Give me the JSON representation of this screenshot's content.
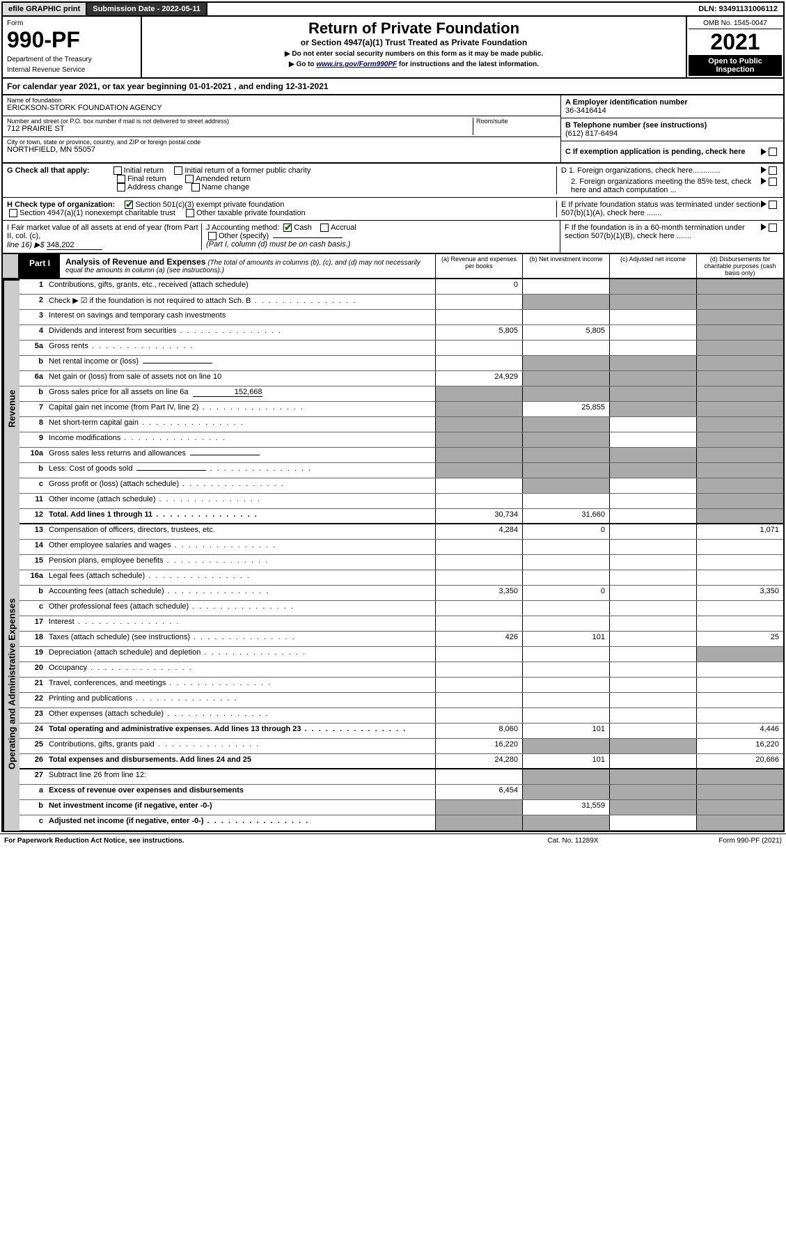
{
  "top_bar": {
    "efile": "efile GRAPHIC print",
    "submission_label": "Submission Date - 2022-05-11",
    "dln": "DLN: 93491131006112"
  },
  "form_header": {
    "form_label": "Form",
    "form_number": "990-PF",
    "dept_line1": "Department of the Treasury",
    "dept_line2": "Internal Revenue Service",
    "title": "Return of Private Foundation",
    "subtitle": "or Section 4947(a)(1) Trust Treated as Private Foundation",
    "note1": "▶ Do not enter social security numbers on this form as it may be made public.",
    "note2_pre": "▶ Go to ",
    "note2_link": "www.irs.gov/Form990PF",
    "note2_post": " for instructions and the latest information.",
    "omb": "OMB No. 1545-0047",
    "year": "2021",
    "inspection": "Open to Public Inspection"
  },
  "cal_year": {
    "text_pre": "For calendar year 2021, or tax year beginning ",
    "begin": "01-01-2021",
    "text_mid": " , and ending ",
    "end": "12-31-2021"
  },
  "entity": {
    "name_label": "Name of foundation",
    "name": "ERICKSON-STORK FOUNDATION AGENCY",
    "addr_label": "Number and street (or P.O. box number if mail is not delivered to street address)",
    "addr": "712 PRAIRIE ST",
    "room_label": "Room/suite",
    "city_label": "City or town, state or province, country, and ZIP or foreign postal code",
    "city": "NORTHFIELD, MN  55057",
    "ein_label": "A Employer identification number",
    "ein": "36-3416414",
    "phone_label": "B Telephone number (see instructions)",
    "phone": "(612) 817-6494",
    "c_label": "C If exemption application is pending, check here",
    "d1_label": "D 1. Foreign organizations, check here.............",
    "d2_label": "2. Foreign organizations meeting the 85% test, check here and attach computation ...",
    "e_label": "E If private foundation status was terminated under section 507(b)(1)(A), check here .......",
    "f_label": "F If the foundation is in a 60-month termination under section 507(b)(1)(B), check here ......."
  },
  "check_g": {
    "label": "G Check all that apply:",
    "items": [
      "Initial return",
      "Initial return of a former public charity",
      "Final return",
      "Amended return",
      "Address change",
      "Name change"
    ]
  },
  "check_h": {
    "label": "H Check type of organization:",
    "opt1": "Section 501(c)(3) exempt private foundation",
    "opt2": "Section 4947(a)(1) nonexempt charitable trust",
    "opt3": "Other taxable private foundation"
  },
  "check_i": {
    "label_pre": "I Fair market value of all assets at end of year (from Part II, col. (c),",
    "label_line": "line 16) ▶$",
    "value": "348,202"
  },
  "check_j": {
    "label": "J Accounting method:",
    "cash": "Cash",
    "accrual": "Accrual",
    "other": "Other (specify)",
    "note": "(Part I, column (d) must be on cash basis.)"
  },
  "part1": {
    "label": "Part I",
    "title": "Analysis of Revenue and Expenses",
    "title_note": "(The total of amounts in columns (b), (c), and (d) may not necessarily equal the amounts in column (a) (see instructions).)",
    "col_a": "(a) Revenue and expenses per books",
    "col_b": "(b) Net investment income",
    "col_c": "(c) Adjusted net income",
    "col_d": "(d) Disbursements for charitable purposes (cash basis only)"
  },
  "side_labels": {
    "revenue": "Revenue",
    "expenses": "Operating and Administrative Expenses"
  },
  "lines": [
    {
      "num": "1",
      "desc": "Contributions, gifts, grants, etc., received (attach schedule)",
      "a": "0",
      "b": "",
      "c_shade": true,
      "d_shade": true
    },
    {
      "num": "2",
      "desc": "Check ▶ ☑ if the foundation is not required to attach Sch. B",
      "dots": true,
      "b_shade": true,
      "c_shade": true,
      "d_shade": true
    },
    {
      "num": "3",
      "desc": "Interest on savings and temporary cash investments",
      "d_shade": true
    },
    {
      "num": "4",
      "desc": "Dividends and interest from securities",
      "dots": true,
      "a": "5,805",
      "b": "5,805",
      "d_shade": true
    },
    {
      "num": "5a",
      "desc": "Gross rents",
      "dots": true,
      "d_shade": true
    },
    {
      "num": "b",
      "desc": "Net rental income or (loss)",
      "sub_input": true,
      "b_shade": true,
      "c_shade": true,
      "d_shade": true
    },
    {
      "num": "6a",
      "desc": "Net gain or (loss) from sale of assets not on line 10",
      "a": "24,929",
      "b_shade": true,
      "c_shade": true,
      "d_shade": true
    },
    {
      "num": "b",
      "desc": "Gross sales price for all assets on line 6a",
      "sub_val": "152,668",
      "a_shade": true,
      "b_shade": true,
      "c_shade": true,
      "d_shade": true
    },
    {
      "num": "7",
      "desc": "Capital gain net income (from Part IV, line 2)",
      "dots": true,
      "a_shade": true,
      "b": "25,855",
      "c_shade": true,
      "d_shade": true
    },
    {
      "num": "8",
      "desc": "Net short-term capital gain",
      "dots": true,
      "a_shade": true,
      "b_shade": true,
      "d_shade": true
    },
    {
      "num": "9",
      "desc": "Income modifications",
      "dots": true,
      "a_shade": true,
      "b_shade": true,
      "d_shade": true
    },
    {
      "num": "10a",
      "desc": "Gross sales less returns and allowances",
      "sub_input": true,
      "a_shade": true,
      "b_shade": true,
      "c_shade": true,
      "d_shade": true
    },
    {
      "num": "b",
      "desc": "Less: Cost of goods sold",
      "dots": true,
      "sub_input": true,
      "a_shade": true,
      "b_shade": true,
      "c_shade": true,
      "d_shade": true
    },
    {
      "num": "c",
      "desc": "Gross profit or (loss) (attach schedule)",
      "dots": true,
      "b_shade": true,
      "d_shade": true
    },
    {
      "num": "11",
      "desc": "Other income (attach schedule)",
      "dots": true,
      "d_shade": true
    },
    {
      "num": "12",
      "desc": "Total. Add lines 1 through 11",
      "dots": true,
      "bold": true,
      "a": "30,734",
      "b": "31,660",
      "d_shade": true,
      "thick": true
    },
    {
      "num": "13",
      "desc": "Compensation of officers, directors, trustees, etc.",
      "a": "4,284",
      "b": "0",
      "d": "1,071"
    },
    {
      "num": "14",
      "desc": "Other employee salaries and wages",
      "dots": true
    },
    {
      "num": "15",
      "desc": "Pension plans, employee benefits",
      "dots": true
    },
    {
      "num": "16a",
      "desc": "Legal fees (attach schedule)",
      "dots": true
    },
    {
      "num": "b",
      "desc": "Accounting fees (attach schedule)",
      "dots": true,
      "a": "3,350",
      "b": "0",
      "d": "3,350"
    },
    {
      "num": "c",
      "desc": "Other professional fees (attach schedule)",
      "dots": true
    },
    {
      "num": "17",
      "desc": "Interest",
      "dots": true
    },
    {
      "num": "18",
      "desc": "Taxes (attach schedule) (see instructions)",
      "dots": true,
      "a": "426",
      "b": "101",
      "d": "25"
    },
    {
      "num": "19",
      "desc": "Depreciation (attach schedule) and depletion",
      "dots": true,
      "d_shade": true
    },
    {
      "num": "20",
      "desc": "Occupancy",
      "dots": true
    },
    {
      "num": "21",
      "desc": "Travel, conferences, and meetings",
      "dots": true
    },
    {
      "num": "22",
      "desc": "Printing and publications",
      "dots": true
    },
    {
      "num": "23",
      "desc": "Other expenses (attach schedule)",
      "dots": true
    },
    {
      "num": "24",
      "desc": "Total operating and administrative expenses. Add lines 13 through 23",
      "dots": true,
      "bold": true,
      "a": "8,060",
      "b": "101",
      "d": "4,446"
    },
    {
      "num": "25",
      "desc": "Contributions, gifts, grants paid",
      "dots": true,
      "a": "16,220",
      "b_shade": true,
      "c_shade": true,
      "d": "16,220"
    },
    {
      "num": "26",
      "desc": "Total expenses and disbursements. Add lines 24 and 25",
      "bold": true,
      "a": "24,280",
      "b": "101",
      "d": "20,666",
      "thick": true
    },
    {
      "num": "27",
      "desc": "Subtract line 26 from line 12:",
      "b_shade": true,
      "c_shade": true,
      "d_shade": true
    },
    {
      "num": "a",
      "desc": "Excess of revenue over expenses and disbursements",
      "bold": true,
      "a": "6,454",
      "b_shade": true,
      "c_shade": true,
      "d_shade": true
    },
    {
      "num": "b",
      "desc": "Net investment income (if negative, enter -0-)",
      "bold": true,
      "a_shade": true,
      "b": "31,559",
      "c_shade": true,
      "d_shade": true
    },
    {
      "num": "c",
      "desc": "Adjusted net income (if negative, enter -0-)",
      "bold": true,
      "dots": true,
      "a_shade": true,
      "b_shade": true,
      "d_shade": true
    }
  ],
  "footer": {
    "left": "For Paperwork Reduction Act Notice, see instructions.",
    "center": "Cat. No. 11289X",
    "right": "Form 990-PF (2021)"
  },
  "colors": {
    "shaded_cell": "#aaaaaa",
    "header_dark": "#333333",
    "check_green": "#006600"
  }
}
